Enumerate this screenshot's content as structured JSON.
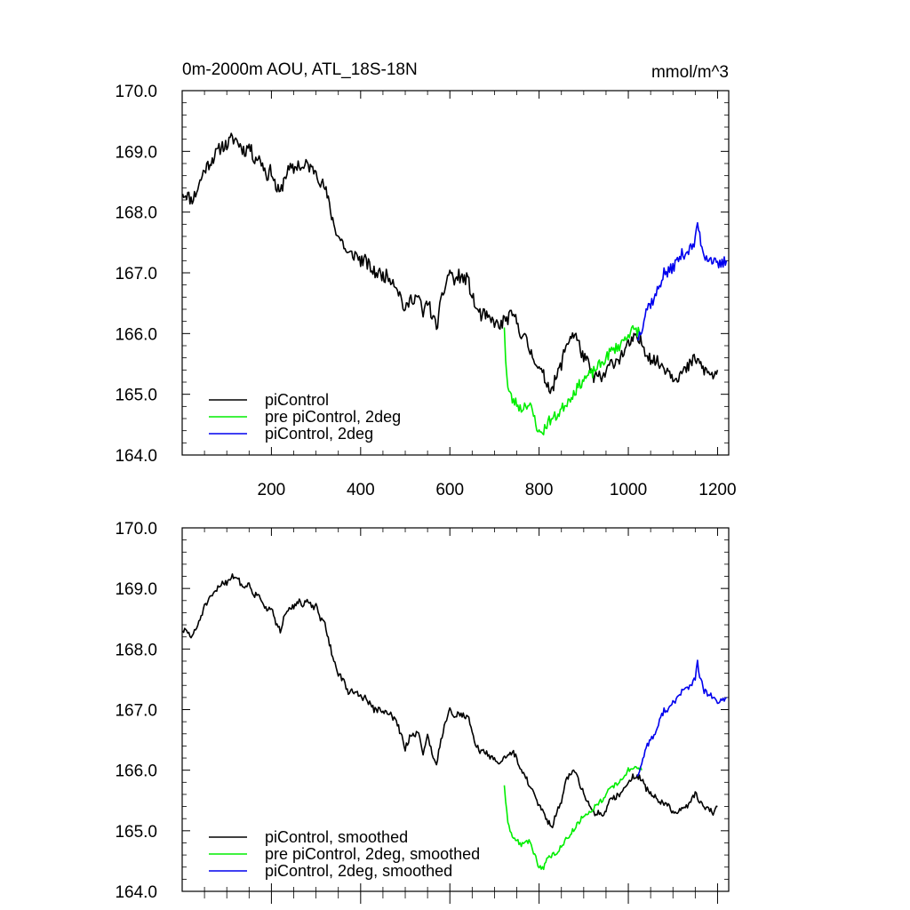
{
  "chart_data": [
    {
      "type": "line",
      "title": "0m-2000m AOU, ATL_18S-18N",
      "units": "mmol/m^3",
      "xlim": [
        0,
        1225
      ],
      "ylim": [
        164.0,
        170.0
      ],
      "x_ticks": [
        200,
        400,
        600,
        800,
        1000,
        1200
      ],
      "y_ticks": [
        "164.0",
        "165.0",
        "166.0",
        "167.0",
        "168.0",
        "169.0",
        "170.0"
      ],
      "legend_position": "lower-left",
      "series": [
        {
          "name": "piControl",
          "color": "#000000",
          "noise": 0.11,
          "seed": 11,
          "x": [
            1,
            10,
            20,
            30,
            40,
            50,
            60,
            70,
            80,
            90,
            100,
            110,
            120,
            130,
            140,
            150,
            160,
            170,
            180,
            190,
            200,
            210,
            220,
            230,
            240,
            250,
            260,
            270,
            280,
            290,
            300,
            310,
            320,
            330,
            340,
            350,
            360,
            370,
            380,
            390,
            400,
            410,
            420,
            430,
            440,
            450,
            460,
            470,
            480,
            490,
            500,
            510,
            520,
            530,
            540,
            550,
            560,
            570,
            580,
            590,
            600,
            610,
            620,
            630,
            640,
            650,
            660,
            670,
            680,
            690,
            700,
            710,
            720,
            730,
            740,
            750,
            760,
            770,
            780,
            790,
            800,
            810,
            820,
            830,
            840,
            850,
            860,
            870,
            880,
            890,
            900,
            910,
            920,
            930,
            940,
            950,
            960,
            970,
            980,
            990,
            1000,
            1010,
            1020,
            1030,
            1040,
            1050,
            1060,
            1070,
            1080,
            1090,
            1100,
            1110,
            1120,
            1130,
            1140,
            1150,
            1160,
            1170,
            1180,
            1190,
            1200
          ],
          "y": [
            168.3,
            168.3,
            168.2,
            168.3,
            168.5,
            168.7,
            168.8,
            168.9,
            169.0,
            169.1,
            169.1,
            169.2,
            169.2,
            169.1,
            169.0,
            169.1,
            168.9,
            168.9,
            168.8,
            168.6,
            168.7,
            168.4,
            168.3,
            168.6,
            168.7,
            168.7,
            168.8,
            168.7,
            168.8,
            168.7,
            168.7,
            168.5,
            168.4,
            168.1,
            167.8,
            167.6,
            167.5,
            167.3,
            167.3,
            167.3,
            167.2,
            167.2,
            167.1,
            167.0,
            167.0,
            166.95,
            166.95,
            166.9,
            166.8,
            166.6,
            166.35,
            166.55,
            166.6,
            166.6,
            166.3,
            166.55,
            166.3,
            166.1,
            166.5,
            166.8,
            167.05,
            166.85,
            166.95,
            166.9,
            166.9,
            166.6,
            166.4,
            166.3,
            166.3,
            166.2,
            166.2,
            166.1,
            166.2,
            166.25,
            166.3,
            166.2,
            166.0,
            165.9,
            165.7,
            165.6,
            165.4,
            165.3,
            165.15,
            165.1,
            165.3,
            165.5,
            165.8,
            165.95,
            166.0,
            165.8,
            165.6,
            165.5,
            165.3,
            165.3,
            165.25,
            165.35,
            165.5,
            165.55,
            165.6,
            165.7,
            165.8,
            165.9,
            165.9,
            165.85,
            165.7,
            165.6,
            165.55,
            165.5,
            165.45,
            165.4,
            165.3,
            165.3,
            165.35,
            165.4,
            165.5,
            165.6,
            165.5,
            165.4,
            165.35,
            165.3,
            165.4
          ]
        },
        {
          "name": "pre piControl, 2deg",
          "color": "#00ee00",
          "noise": 0.09,
          "seed": 23,
          "x": [
            722,
            725,
            730,
            735,
            740,
            750,
            760,
            770,
            780,
            790,
            800,
            810,
            820,
            830,
            840,
            850,
            860,
            870,
            880,
            890,
            900,
            910,
            920,
            930,
            940,
            950,
            960,
            970,
            980,
            990,
            1000,
            1010,
            1020,
            1030
          ],
          "y": [
            166.1,
            165.6,
            165.1,
            165.0,
            164.9,
            164.85,
            164.75,
            164.85,
            164.8,
            164.6,
            164.35,
            164.4,
            164.55,
            164.6,
            164.65,
            164.75,
            164.85,
            164.95,
            165.05,
            165.15,
            165.25,
            165.3,
            165.35,
            165.45,
            165.5,
            165.6,
            165.7,
            165.75,
            165.8,
            165.9,
            166.0,
            166.05,
            166.05,
            166.0
          ],
          "legend_label_offset": 0
        },
        {
          "name": "piControl, 2deg",
          "color": "#0000ee",
          "noise": 0.1,
          "seed": 37,
          "x": [
            1020,
            1030,
            1040,
            1050,
            1060,
            1070,
            1080,
            1090,
            1100,
            1110,
            1120,
            1130,
            1140,
            1150,
            1155,
            1160,
            1170,
            1180,
            1190,
            1200,
            1210,
            1220
          ],
          "y": [
            165.9,
            166.1,
            166.4,
            166.5,
            166.6,
            166.8,
            167.0,
            167.0,
            167.1,
            167.2,
            167.3,
            167.35,
            167.4,
            167.5,
            167.85,
            167.6,
            167.3,
            167.25,
            167.2,
            167.1,
            167.15,
            167.2
          ]
        }
      ]
    },
    {
      "type": "line",
      "xlim": [
        0,
        1225
      ],
      "ylim": [
        164.0,
        170.0
      ],
      "y_ticks": [
        "164.0",
        "165.0",
        "166.0",
        "167.0",
        "168.0",
        "169.0",
        "170.0"
      ],
      "legend_position": "lower-left",
      "series": [
        {
          "name": "piControl, smoothed",
          "color": "#000000",
          "noise": 0.05,
          "seed": 51,
          "x": [
            1,
            10,
            20,
            30,
            40,
            50,
            60,
            70,
            80,
            90,
            100,
            110,
            120,
            130,
            140,
            150,
            160,
            170,
            180,
            190,
            200,
            210,
            220,
            230,
            240,
            250,
            260,
            270,
            280,
            290,
            300,
            310,
            320,
            330,
            340,
            350,
            360,
            370,
            380,
            390,
            400,
            410,
            420,
            430,
            440,
            450,
            460,
            470,
            480,
            490,
            500,
            510,
            520,
            530,
            540,
            550,
            560,
            570,
            580,
            590,
            600,
            610,
            620,
            630,
            640,
            650,
            660,
            670,
            680,
            690,
            700,
            710,
            720,
            730,
            740,
            750,
            760,
            770,
            780,
            790,
            800,
            810,
            820,
            830,
            840,
            850,
            860,
            870,
            880,
            890,
            900,
            910,
            920,
            930,
            940,
            950,
            960,
            970,
            980,
            990,
            1000,
            1010,
            1020,
            1030,
            1040,
            1050,
            1060,
            1070,
            1080,
            1090,
            1100,
            1110,
            1120,
            1130,
            1140,
            1150,
            1160,
            1170,
            1180,
            1190,
            1200
          ],
          "y": [
            168.3,
            168.3,
            168.2,
            168.3,
            168.5,
            168.7,
            168.8,
            168.9,
            169.0,
            169.1,
            169.1,
            169.2,
            169.2,
            169.1,
            169.0,
            169.1,
            168.9,
            168.9,
            168.8,
            168.6,
            168.7,
            168.4,
            168.3,
            168.6,
            168.7,
            168.7,
            168.8,
            168.7,
            168.8,
            168.7,
            168.7,
            168.5,
            168.4,
            168.1,
            167.8,
            167.6,
            167.5,
            167.3,
            167.3,
            167.3,
            167.2,
            167.2,
            167.1,
            167.0,
            167.0,
            166.95,
            166.95,
            166.9,
            166.8,
            166.6,
            166.35,
            166.55,
            166.6,
            166.6,
            166.3,
            166.55,
            166.3,
            166.1,
            166.5,
            166.8,
            167.05,
            166.85,
            166.95,
            166.9,
            166.9,
            166.6,
            166.4,
            166.3,
            166.3,
            166.2,
            166.2,
            166.1,
            166.2,
            166.25,
            166.3,
            166.2,
            166.0,
            165.9,
            165.7,
            165.6,
            165.4,
            165.3,
            165.15,
            165.1,
            165.3,
            165.5,
            165.8,
            165.95,
            166.0,
            165.8,
            165.6,
            165.5,
            165.3,
            165.3,
            165.25,
            165.35,
            165.5,
            165.55,
            165.6,
            165.7,
            165.8,
            165.9,
            165.9,
            165.85,
            165.7,
            165.6,
            165.55,
            165.5,
            165.45,
            165.4,
            165.3,
            165.3,
            165.35,
            165.4,
            165.5,
            165.6,
            165.5,
            165.4,
            165.35,
            165.3,
            165.4
          ]
        },
        {
          "name": "pre piControl, 2deg, smoothed",
          "color": "#00ee00",
          "noise": 0.04,
          "seed": 63,
          "x": [
            722,
            725,
            730,
            735,
            740,
            750,
            760,
            770,
            780,
            790,
            800,
            810,
            820,
            830,
            840,
            850,
            860,
            870,
            880,
            890,
            900,
            910,
            920,
            930,
            940,
            950,
            960,
            970,
            980,
            990,
            1000,
            1010,
            1020,
            1030
          ],
          "y": [
            165.75,
            165.5,
            165.1,
            165.0,
            164.9,
            164.85,
            164.75,
            164.85,
            164.8,
            164.6,
            164.4,
            164.4,
            164.55,
            164.6,
            164.65,
            164.75,
            164.85,
            164.95,
            165.05,
            165.15,
            165.25,
            165.3,
            165.35,
            165.45,
            165.5,
            165.6,
            165.7,
            165.75,
            165.8,
            165.9,
            166.0,
            166.05,
            166.05,
            166.0
          ]
        },
        {
          "name": "piControl, 2deg, smoothed",
          "color": "#0000ee",
          "noise": 0.05,
          "seed": 77,
          "x": [
            1020,
            1030,
            1040,
            1050,
            1060,
            1070,
            1080,
            1090,
            1100,
            1110,
            1120,
            1130,
            1140,
            1150,
            1155,
            1160,
            1170,
            1180,
            1190,
            1200,
            1210,
            1220
          ],
          "y": [
            165.9,
            166.1,
            166.4,
            166.5,
            166.6,
            166.8,
            167.0,
            167.0,
            167.1,
            167.2,
            167.3,
            167.35,
            167.4,
            167.5,
            167.8,
            167.55,
            167.3,
            167.25,
            167.2,
            167.1,
            167.15,
            167.2
          ]
        }
      ]
    }
  ]
}
